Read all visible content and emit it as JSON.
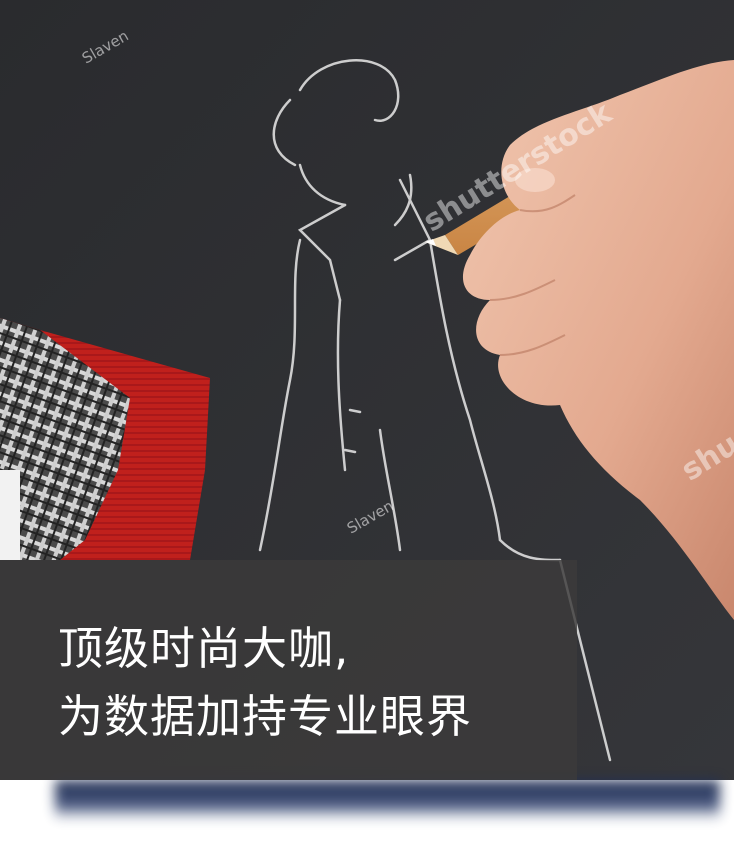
{
  "caption": {
    "line1": "顶级时尚大咖,",
    "line2": "为数据加持专业眼界"
  },
  "watermarks": {
    "author": "Slaven",
    "brand": "shutterstock",
    "brand_partial": "shu"
  },
  "colors": {
    "board": "#2f3033",
    "fabric_red": "#c0201c",
    "pencil": "#d9a063",
    "skin": "#e8b59c",
    "caption_bg": "#3c3a3a",
    "bottom_shadow": "#1c2a4e"
  }
}
